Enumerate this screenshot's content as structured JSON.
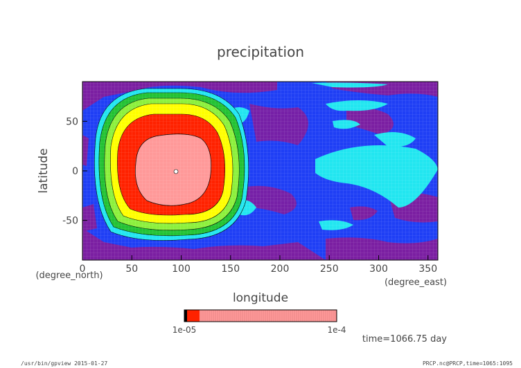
{
  "chart_data": {
    "type": "heatmap",
    "title": "precipitation",
    "xlabel": "longitude",
    "ylabel": "latitude",
    "x_unit": "(degree_east)",
    "y_unit": "(degree_north)",
    "xlim": [
      0,
      360
    ],
    "ylim": [
      -90,
      90
    ],
    "x_ticks": [
      0,
      50,
      100,
      150,
      200,
      250,
      300,
      350
    ],
    "y_ticks": [
      -50,
      0,
      50
    ],
    "colorbar": {
      "left_label": "1e-05",
      "right_label": "1e-4",
      "segment_colors": [
        "#000000",
        "#ff2200",
        "#ff9999"
      ]
    },
    "level_colors": [
      "#7b1fa2",
      "#1f3ff5",
      "#22e6f0",
      "#22c233",
      "#8cf03c",
      "#ffff00",
      "#ff2200",
      "#ff9999"
    ],
    "time_label": "time=1066.75 day"
  },
  "footer": {
    "left": "/usr/bin/gpview  2015-01-27",
    "right": "PRCP.nc@PRCP,time=1065:1095"
  }
}
